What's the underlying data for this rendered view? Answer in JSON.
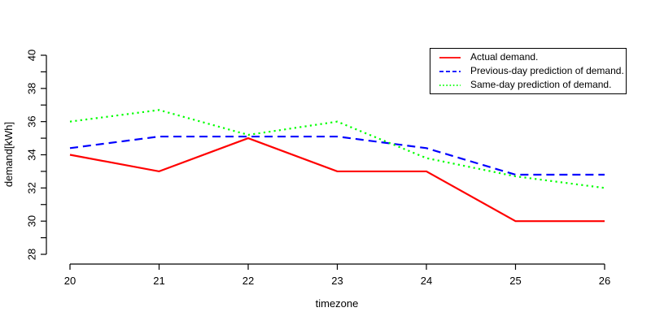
{
  "chart_data": {
    "type": "line",
    "title": "",
    "xlabel": "timezone",
    "ylabel": "demand[kWh]",
    "x": [
      20,
      21,
      22,
      23,
      24,
      25,
      26
    ],
    "xlim": [
      20,
      26
    ],
    "ylim": [
      28,
      40
    ],
    "x_ticks": [
      20,
      21,
      22,
      23,
      24,
      25,
      26
    ],
    "y_tick_labels": [
      28,
      30,
      32,
      34,
      36,
      38,
      40
    ],
    "y_minor_tick_step": 1,
    "grid": "off",
    "legend_position": "top-right",
    "axis_color": "#000000",
    "background_color": "#ffffff",
    "series": [
      {
        "name": "Actual demand.",
        "color": "#ff0000",
        "line_style": "solid",
        "values": [
          34,
          33,
          35,
          33,
          33,
          30,
          30
        ]
      },
      {
        "name": "Previous-day prediction of demand.",
        "color": "#0000ff",
        "line_style": "dashed",
        "values": [
          34.4,
          35.1,
          35.1,
          35.1,
          34.4,
          32.8,
          32.8
        ]
      },
      {
        "name": "Same-day prediction of demand.",
        "color": "#00ff00",
        "line_style": "dotted",
        "values": [
          36,
          36.7,
          35.2,
          36,
          33.8,
          32.7,
          32
        ]
      }
    ]
  }
}
